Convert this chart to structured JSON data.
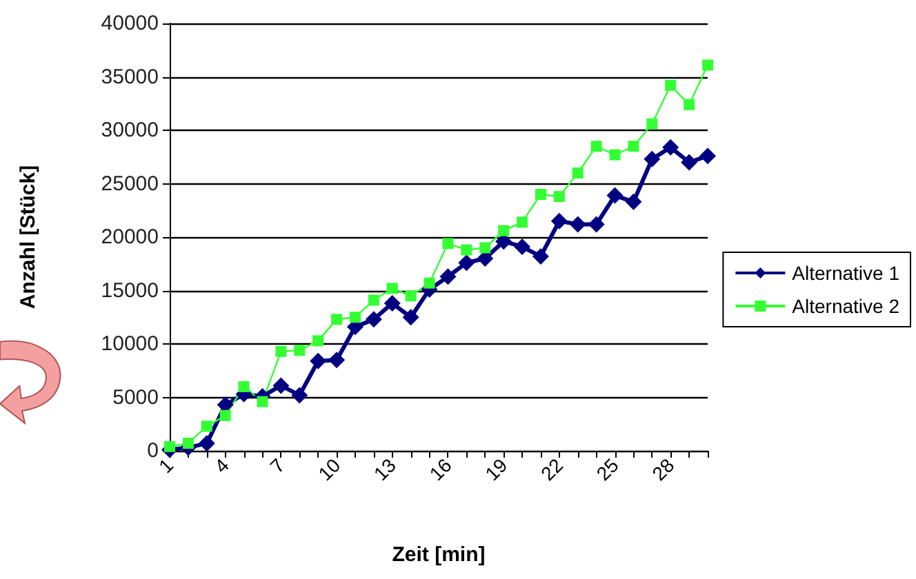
{
  "chart_data": {
    "type": "line",
    "xlabel": "Zeit [min]",
    "ylabel": "Anzahl [Stück]",
    "categories": [
      "1",
      null,
      null,
      "4",
      null,
      null,
      "7",
      null,
      null,
      "10",
      null,
      null,
      "13",
      null,
      null,
      "16",
      null,
      null,
      "19",
      null,
      null,
      "22",
      null,
      null,
      "25",
      null,
      null,
      "28",
      null,
      null
    ],
    "series": [
      {
        "name": "Alternative 1",
        "color": "#000080",
        "marker": "diamond",
        "values": [
          100,
          300,
          700,
          4300,
          5300,
          5100,
          6100,
          5200,
          8400,
          8500,
          11600,
          12300,
          13800,
          12500,
          15100,
          16300,
          17600,
          18000,
          19600,
          19100,
          18200,
          21500,
          21200,
          21200,
          23900,
          23300,
          27300,
          28400,
          27000,
          27600
        ]
      },
      {
        "name": "Alternative 2",
        "color": "#33ff33",
        "marker": "square",
        "values": [
          400,
          700,
          2300,
          3300,
          6000,
          4600,
          9300,
          9400,
          10300,
          12300,
          12500,
          14100,
          15200,
          14500,
          15700,
          19400,
          18800,
          19000,
          20600,
          21400,
          24000,
          23800,
          26000,
          28500,
          27700,
          28500,
          30600,
          34200,
          32400,
          36100
        ]
      }
    ],
    "ylim": [
      0,
      40000
    ],
    "yticks": [
      0,
      5000,
      10000,
      15000,
      20000,
      25000,
      30000,
      35000,
      40000
    ],
    "grid": "y",
    "legend": "right"
  }
}
